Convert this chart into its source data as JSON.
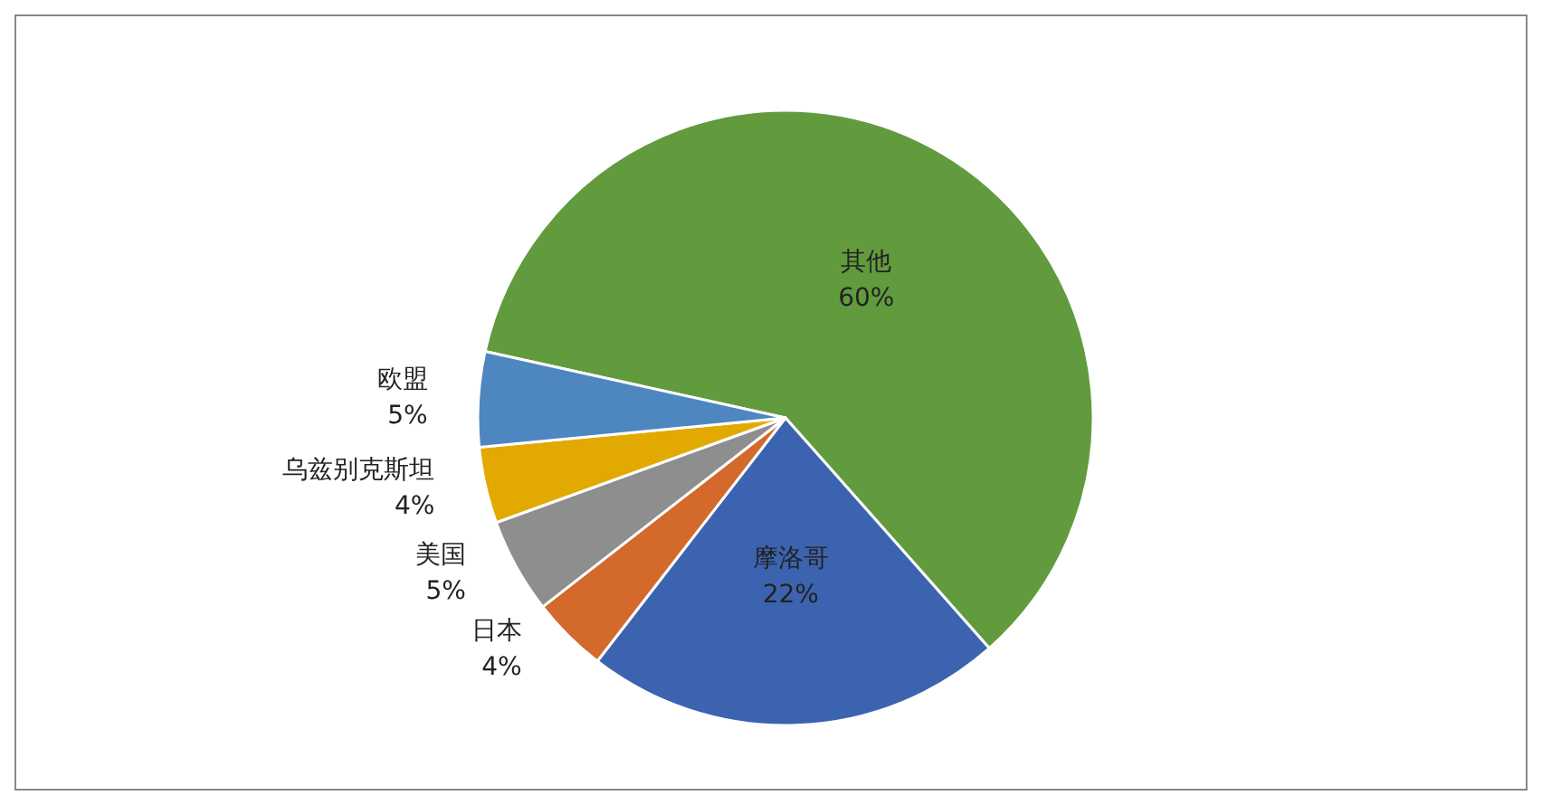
{
  "chart_data": {
    "type": "pie",
    "categories": [
      "其他",
      "摩洛哥",
      "日本",
      "美国",
      "乌兹别克斯坦",
      "欧盟"
    ],
    "values": [
      60,
      22,
      4,
      5,
      4,
      5
    ],
    "value_labels": [
      "60%",
      "22%",
      "4%",
      "5%",
      "4%",
      "5%"
    ],
    "colors": [
      "#629b3e",
      "#3c63af",
      "#d3692a",
      "#8e8e8e",
      "#e2aa00",
      "#4e86c0"
    ],
    "legend": false
  }
}
